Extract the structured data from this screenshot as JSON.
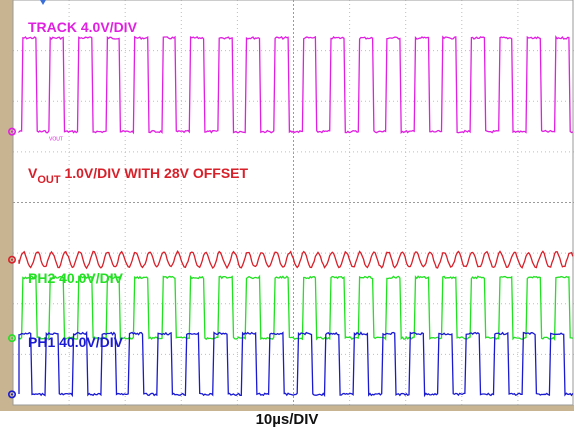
{
  "chart_data": {
    "type": "line",
    "title": "",
    "xlabel": "10µs/DIV",
    "ylabel": "",
    "grid": true,
    "grid_divisions": {
      "x": 10,
      "y": 8
    },
    "series": [
      {
        "name": "TRACK 4.0V/DIV",
        "label_parts": [
          "TRACK 4.0V/DIV"
        ],
        "color": "#e020e0",
        "kind": "square",
        "ground_div": 5.4,
        "low_volts": 0.0,
        "high_volts": 7.4,
        "period_us": 5.0,
        "duty": 0.5,
        "marker_text": "VOUT"
      },
      {
        "name": "VOUT 1.0V/DIV WITH 28V OFFSET",
        "label_parts": [
          "V",
          "OUT",
          " 1.0V/DIV WITH 28V OFFSET"
        ],
        "color": "#d8202a",
        "kind": "ripple",
        "ground_div": 2.87,
        "low_volts": 0.15,
        "high_volts": 0.15,
        "period_us": 2.5,
        "duty": 0.5
      },
      {
        "name": "PH2 40.0V/DIV",
        "label_parts": [
          "PH2 40.0V/DIV"
        ],
        "color": "#22e022",
        "kind": "square",
        "ground_div": 1.32,
        "low_volts": 0.0,
        "high_volts": 48,
        "period_us": 5.0,
        "duty": 0.5
      },
      {
        "name": "PH1 40.0V/DIV",
        "label_parts": [
          "PH1 40.0V/DIV"
        ],
        "color": "#1a1ad0",
        "kind": "square",
        "ground_div": 0.21,
        "low_volts": 0.0,
        "high_volts": 48,
        "period_us": 5.0,
        "duty": 0.5
      }
    ]
  }
}
